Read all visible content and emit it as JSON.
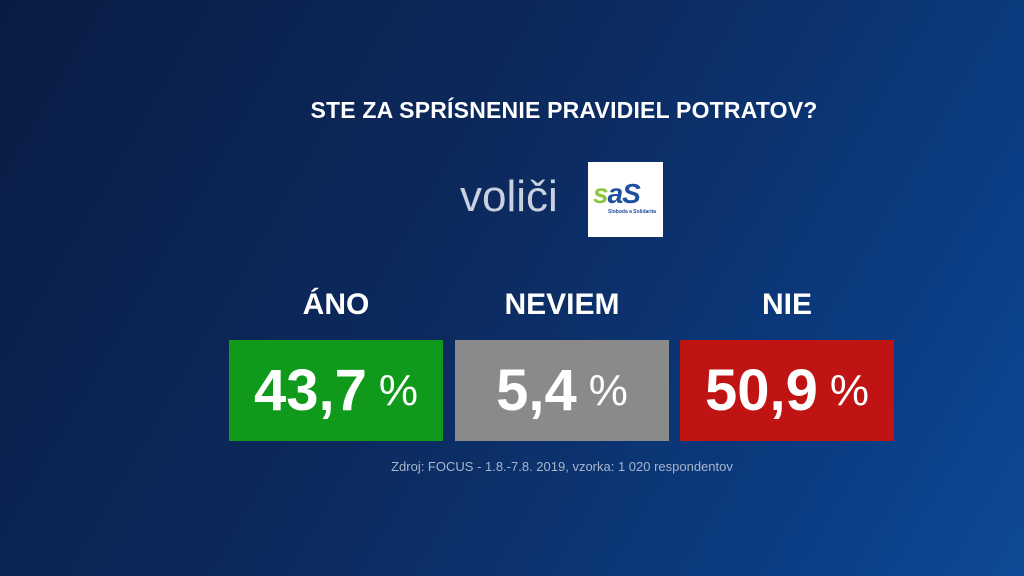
{
  "title": "STE ZA SPRÍSNENIE PRAVIDIEL POTRATOV?",
  "subtitle": "voliči",
  "party_logo": {
    "text": "SaS",
    "subtext": "Sloboda a Solidarita"
  },
  "results": [
    {
      "label": "ÁNO",
      "value": "43,7",
      "unit": "%",
      "color": "#0f9a1c"
    },
    {
      "label": "NEVIEM",
      "value": "5,4",
      "unit": "%",
      "color": "#8a8a8a"
    },
    {
      "label": "NIE",
      "value": "50,9",
      "unit": "%",
      "color": "#c01414"
    }
  ],
  "source": "Zdroj: FOCUS - 1.8.-7.8. 2019, vzorka: 1 020 respondentov"
}
